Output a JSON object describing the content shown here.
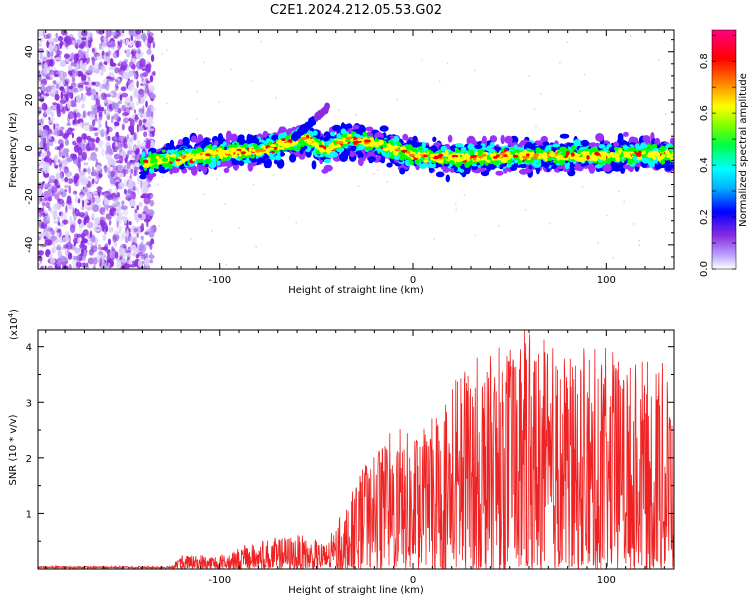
{
  "title": "C2E1.2024.212.05.53.G02",
  "chart_data": [
    {
      "type": "heatmap",
      "xlabel": "Height of straight line (km)",
      "ylabel": "Frequency (Hz)",
      "xlim": [
        -194,
        135
      ],
      "ylim": [
        -50,
        49
      ],
      "x_ticks": [
        -100,
        0,
        100
      ],
      "y_ticks": [
        -40,
        -20,
        0,
        20,
        40
      ],
      "colorbar": {
        "label": "Normalized spectral amplitude",
        "range": [
          0,
          0.92
        ],
        "ticks": [
          0.0,
          0.2,
          0.4,
          0.6,
          0.8
        ],
        "colormap": [
          "#ffffff",
          "#9b30ff",
          "#0000ff",
          "#00ffff",
          "#00ff00",
          "#ffff00",
          "#ff0000",
          "#ff00ff"
        ]
      },
      "ridge": {
        "height_km": [
          -140,
          -120,
          -100,
          -80,
          -65,
          -55,
          -45,
          -35,
          -20,
          0,
          25,
          50,
          75,
          100,
          120,
          135
        ],
        "frequency_hz": [
          -6,
          -4,
          -2,
          -1,
          2,
          4,
          -1,
          4,
          2,
          -3,
          -4,
          -3,
          -3,
          -3,
          -2,
          -3
        ]
      },
      "noise_region_km": [
        -194,
        -134
      ],
      "grid": false
    },
    {
      "type": "line",
      "xlabel": "Height of straight line (km)",
      "ylabel": "SNR (10 * v/v)",
      "y_multiplier": "(x10",
      "y_multiplier_exp": "4",
      "xlim": [
        -194,
        135
      ],
      "ylim": [
        0,
        4.3
      ],
      "x_ticks": [
        -100,
        0,
        100
      ],
      "y_ticks": [
        1,
        2,
        3,
        4
      ],
      "color": "#ee2222",
      "envelope": {
        "height_km": [
          -194,
          -125,
          -120,
          -100,
          -80,
          -60,
          -45,
          -35,
          -25,
          -10,
          0,
          10,
          20,
          30,
          40,
          60,
          80,
          100,
          120,
          135
        ],
        "snr_x1e4": [
          0.02,
          0.05,
          0.25,
          0.25,
          0.5,
          0.6,
          0.45,
          1.1,
          1.8,
          2.5,
          2.3,
          2.6,
          3.3,
          3.8,
          4.0,
          4.1,
          3.8,
          3.8,
          3.6,
          3.5
        ]
      },
      "grid": false
    }
  ]
}
